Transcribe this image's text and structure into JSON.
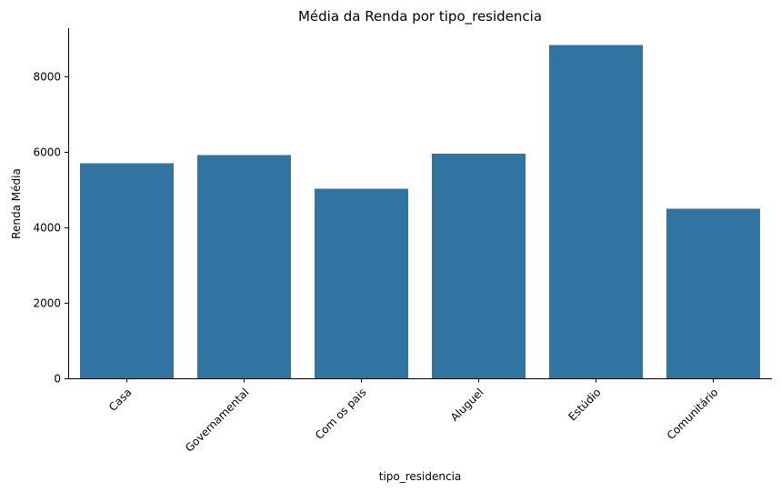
{
  "chart_data": {
    "type": "bar",
    "title": "Média da Renda por tipo_residencia",
    "xlabel": "tipo_residencia",
    "ylabel": "Renda Média",
    "categories": [
      "Casa",
      "Governamental",
      "Com os pais",
      "Aluguel",
      "Estúdio",
      "Comunitário"
    ],
    "values": [
      5700,
      5920,
      5030,
      5950,
      8840,
      4500
    ],
    "yticks": [
      0,
      2000,
      4000,
      6000,
      8000
    ],
    "ytick_labels": [
      "0",
      "2000",
      "4000",
      "6000",
      "8000"
    ],
    "ylim": [
      0,
      9280
    ],
    "grid": false,
    "bar_color": "#3274a1"
  }
}
